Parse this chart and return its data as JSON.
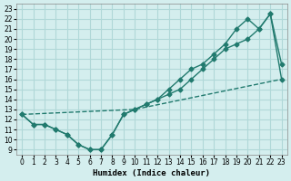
{
  "xlabel": "Humidex (Indice chaleur)",
  "ylabel": "",
  "background_color": "#d4eeee",
  "grid_color": "#b0d8d8",
  "line_color": "#217a6e",
  "xlim": [
    -0.5,
    23.5
  ],
  "ylim": [
    8.5,
    23.5
  ],
  "xticks": [
    0,
    1,
    2,
    3,
    4,
    5,
    6,
    7,
    8,
    9,
    10,
    11,
    12,
    13,
    14,
    15,
    16,
    17,
    18,
    19,
    20,
    21,
    22,
    23
  ],
  "yticks": [
    9,
    10,
    11,
    12,
    13,
    14,
    15,
    16,
    17,
    18,
    19,
    20,
    21,
    22,
    23
  ],
  "line1_x": [
    0,
    1,
    2,
    3,
    4,
    5,
    6,
    7,
    8,
    9,
    10,
    11,
    12,
    13,
    14,
    15,
    16,
    17,
    18,
    19,
    20,
    21,
    22,
    23
  ],
  "line1_y": [
    12.5,
    11.5,
    11.5,
    11,
    10.5,
    9.5,
    9,
    9,
    10.5,
    12.5,
    13,
    13.5,
    14,
    14.5,
    15,
    16,
    17,
    18,
    19,
    19.5,
    20,
    21,
    22.5,
    16
  ],
  "line2_x": [
    0,
    1,
    2,
    3,
    4,
    5,
    6,
    7,
    8,
    9,
    10,
    11,
    12,
    13,
    14,
    15,
    16,
    17,
    18,
    19,
    20,
    21,
    22,
    23
  ],
  "line2_y": [
    12.5,
    11.5,
    11.5,
    11,
    10.5,
    9.5,
    9,
    9,
    10.5,
    12.5,
    13,
    13.5,
    14,
    15,
    16,
    17,
    17.5,
    18.5,
    19.5,
    21,
    22,
    21,
    22.5,
    17.5
  ],
  "line3_x": [
    0,
    10,
    23
  ],
  "line3_y": [
    12.5,
    13,
    16
  ]
}
